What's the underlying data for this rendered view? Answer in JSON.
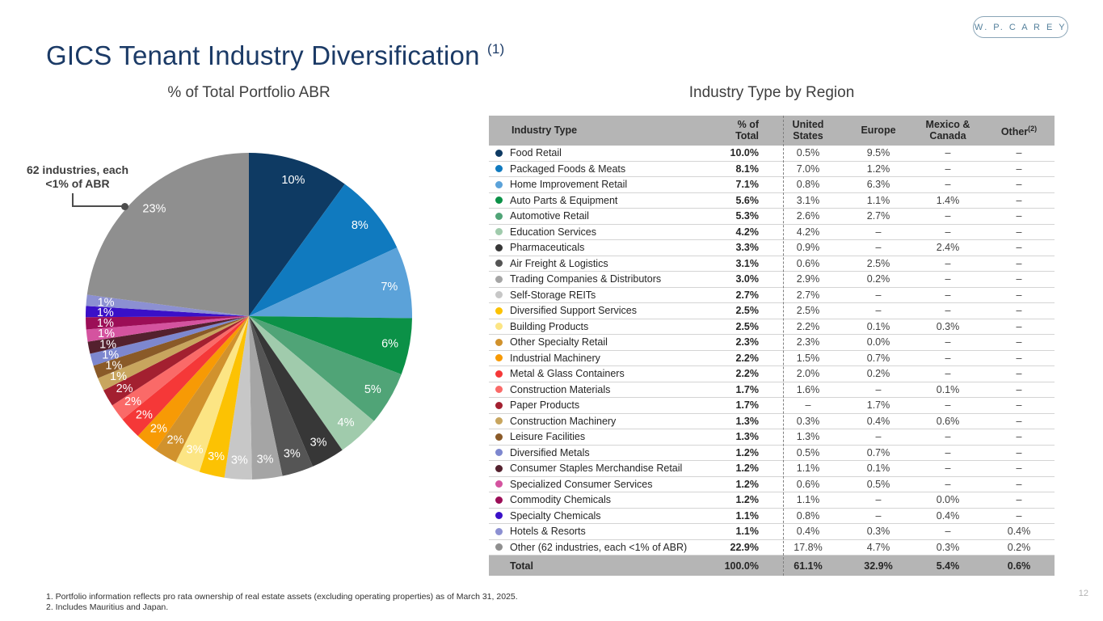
{
  "logo": {
    "text": "W. P. C A R E Y"
  },
  "title": {
    "text": "GICS Tenant Industry Diversification",
    "footnote_ref": "(1)"
  },
  "left_panel": {
    "subtitle": "% of Total Portfolio ABR",
    "callout": "62 industries, each\n<1% of ABR"
  },
  "right_panel": {
    "subtitle": "Industry Type by Region"
  },
  "chart_data": {
    "type": "pie",
    "title": "% of Total Portfolio ABR",
    "start_angle_deg": 0,
    "direction": "clockwise",
    "slices": [
      {
        "name": "Food Retail",
        "value": 10.0,
        "label": "10%",
        "color": "#0e3a63"
      },
      {
        "name": "Packaged Foods & Meats",
        "value": 8.1,
        "label": "8%",
        "color": "#107abf"
      },
      {
        "name": "Home Improvement Retail",
        "value": 7.1,
        "label": "7%",
        "color": "#5ba2d9"
      },
      {
        "name": "Auto Parts & Equipment",
        "value": 5.6,
        "label": "6%",
        "color": "#0b9147"
      },
      {
        "name": "Automotive Retail",
        "value": 5.3,
        "label": "5%",
        "color": "#50a477"
      },
      {
        "name": "Education Services",
        "value": 4.2,
        "label": "4%",
        "color": "#a0cbac"
      },
      {
        "name": "Pharmaceuticals",
        "value": 3.3,
        "label": "3%",
        "color": "#373737"
      },
      {
        "name": "Air Freight & Logistics",
        "value": 3.1,
        "label": "3%",
        "color": "#555555"
      },
      {
        "name": "Trading Companies & Distributors",
        "value": 3.0,
        "label": "3%",
        "color": "#a5a5a5"
      },
      {
        "name": "Self-Storage REITs",
        "value": 2.7,
        "label": "3%",
        "color": "#c7c7c7"
      },
      {
        "name": "Diversified Support Services",
        "value": 2.5,
        "label": "3%",
        "color": "#fcc203"
      },
      {
        "name": "Building Products",
        "value": 2.5,
        "label": "3%",
        "color": "#fce584"
      },
      {
        "name": "Other Specialty Retail",
        "value": 2.3,
        "label": "2%",
        "color": "#d1922d"
      },
      {
        "name": "Industrial Machinery",
        "value": 2.2,
        "label": "2%",
        "color": "#f79a05"
      },
      {
        "name": "Metal & Glass Containers",
        "value": 2.2,
        "label": "2%",
        "color": "#f53838"
      },
      {
        "name": "Construction Materials",
        "value": 1.7,
        "label": "2%",
        "color": "#fa6a68"
      },
      {
        "name": "Paper Products",
        "value": 1.7,
        "label": "2%",
        "color": "#a32030"
      },
      {
        "name": "Construction Machinery",
        "value": 1.3,
        "label": "1%",
        "color": "#c8a55e"
      },
      {
        "name": "Leisure Facilities",
        "value": 1.3,
        "label": "1%",
        "color": "#8a5a28"
      },
      {
        "name": "Diversified Metals",
        "value": 1.2,
        "label": "1%",
        "color": "#7d87cf"
      },
      {
        "name": "Consumer Staples Merchandise Retail",
        "value": 1.2,
        "label": "1%",
        "color": "#54212e"
      },
      {
        "name": "Specialized Consumer Services",
        "value": 1.2,
        "label": "1%",
        "color": "#d4539f"
      },
      {
        "name": "Commodity Chemicals",
        "value": 1.2,
        "label": "1%",
        "color": "#9c0e57"
      },
      {
        "name": "Specialty Chemicals",
        "value": 1.1,
        "label": "1%",
        "color": "#3a10c8"
      },
      {
        "name": "Hotels & Resorts",
        "value": 1.1,
        "label": "1%",
        "color": "#8c90d2"
      },
      {
        "name": "Other (62 industries, each <1% of ABR)",
        "value": 22.9,
        "label": "23%",
        "color": "#8f8f8f"
      }
    ]
  },
  "table": {
    "headers": {
      "industry": "Industry Type",
      "total": "% of\nTotal",
      "us": "United\nStates",
      "europe": "Europe",
      "mexico_canada": "Mexico &\nCanada",
      "other": "Other",
      "other_sup": "(2)"
    },
    "rows": [
      {
        "industry": "Food Retail",
        "total": "10.0%",
        "us": "0.5%",
        "europe": "9.5%",
        "mexico_canada": "–",
        "other": "–"
      },
      {
        "industry": "Packaged Foods & Meats",
        "total": "8.1%",
        "us": "7.0%",
        "europe": "1.2%",
        "mexico_canada": "–",
        "other": "–"
      },
      {
        "industry": "Home Improvement Retail",
        "total": "7.1%",
        "us": "0.8%",
        "europe": "6.3%",
        "mexico_canada": "–",
        "other": "–"
      },
      {
        "industry": "Auto Parts & Equipment",
        "total": "5.6%",
        "us": "3.1%",
        "europe": "1.1%",
        "mexico_canada": "1.4%",
        "other": "–"
      },
      {
        "industry": "Automotive Retail",
        "total": "5.3%",
        "us": "2.6%",
        "europe": "2.7%",
        "mexico_canada": "–",
        "other": "–"
      },
      {
        "industry": "Education Services",
        "total": "4.2%",
        "us": "4.2%",
        "europe": "–",
        "mexico_canada": "–",
        "other": "–"
      },
      {
        "industry": "Pharmaceuticals",
        "total": "3.3%",
        "us": "0.9%",
        "europe": "–",
        "mexico_canada": "2.4%",
        "other": "–"
      },
      {
        "industry": "Air Freight & Logistics",
        "total": "3.1%",
        "us": "0.6%",
        "europe": "2.5%",
        "mexico_canada": "–",
        "other": "–"
      },
      {
        "industry": "Trading Companies & Distributors",
        "total": "3.0%",
        "us": "2.9%",
        "europe": "0.2%",
        "mexico_canada": "–",
        "other": "–"
      },
      {
        "industry": "Self-Storage REITs",
        "total": "2.7%",
        "us": "2.7%",
        "europe": "–",
        "mexico_canada": "–",
        "other": "–"
      },
      {
        "industry": "Diversified Support Services",
        "total": "2.5%",
        "us": "2.5%",
        "europe": "–",
        "mexico_canada": "–",
        "other": "–"
      },
      {
        "industry": "Building Products",
        "total": "2.5%",
        "us": "2.2%",
        "europe": "0.1%",
        "mexico_canada": "0.3%",
        "other": "–"
      },
      {
        "industry": "Other Specialty Retail",
        "total": "2.3%",
        "us": "2.3%",
        "europe": "0.0%",
        "mexico_canada": "–",
        "other": "–"
      },
      {
        "industry": "Industrial Machinery",
        "total": "2.2%",
        "us": "1.5%",
        "europe": "0.7%",
        "mexico_canada": "–",
        "other": "–"
      },
      {
        "industry": "Metal & Glass Containers",
        "total": "2.2%",
        "us": "2.0%",
        "europe": "0.2%",
        "mexico_canada": "–",
        "other": "–"
      },
      {
        "industry": "Construction Materials",
        "total": "1.7%",
        "us": "1.6%",
        "europe": "–",
        "mexico_canada": "0.1%",
        "other": "–"
      },
      {
        "industry": "Paper Products",
        "total": "1.7%",
        "us": "–",
        "europe": "1.7%",
        "mexico_canada": "–",
        "other": "–"
      },
      {
        "industry": "Construction Machinery",
        "total": "1.3%",
        "us": "0.3%",
        "europe": "0.4%",
        "mexico_canada": "0.6%",
        "other": "–"
      },
      {
        "industry": "Leisure Facilities",
        "total": "1.3%",
        "us": "1.3%",
        "europe": "–",
        "mexico_canada": "–",
        "other": "–"
      },
      {
        "industry": "Diversified Metals",
        "total": "1.2%",
        "us": "0.5%",
        "europe": "0.7%",
        "mexico_canada": "–",
        "other": "–"
      },
      {
        "industry": "Consumer Staples Merchandise Retail",
        "total": "1.2%",
        "us": "1.1%",
        "europe": "0.1%",
        "mexico_canada": "–",
        "other": "–"
      },
      {
        "industry": "Specialized Consumer Services",
        "total": "1.2%",
        "us": "0.6%",
        "europe": "0.5%",
        "mexico_canada": "–",
        "other": "–"
      },
      {
        "industry": "Commodity Chemicals",
        "total": "1.2%",
        "us": "1.1%",
        "europe": "–",
        "mexico_canada": "0.0%",
        "other": "–"
      },
      {
        "industry": "Specialty Chemicals",
        "total": "1.1%",
        "us": "0.8%",
        "europe": "–",
        "mexico_canada": "0.4%",
        "other": "–"
      },
      {
        "industry": "Hotels & Resorts",
        "total": "1.1%",
        "us": "0.4%",
        "europe": "0.3%",
        "mexico_canada": "–",
        "other": "0.4%"
      },
      {
        "industry": "Other (62 industries, each <1% of ABR)",
        "total": "22.9%",
        "us": "17.8%",
        "europe": "4.7%",
        "mexico_canada": "0.3%",
        "other": "0.2%"
      }
    ],
    "total_row": {
      "industry": "Total",
      "total": "100.0%",
      "us": "61.1%",
      "europe": "32.9%",
      "mexico_canada": "5.4%",
      "other": "0.6%"
    }
  },
  "footnotes": [
    "1. Portfolio information reflects pro rata ownership of real estate assets (excluding operating properties) as of March 31, 2025.",
    "2. Includes Mauritius and Japan."
  ],
  "page_number": "12",
  "colors": {
    "accent_navy": "#1b3a66",
    "table_header_gray": "#b5b5b5"
  }
}
